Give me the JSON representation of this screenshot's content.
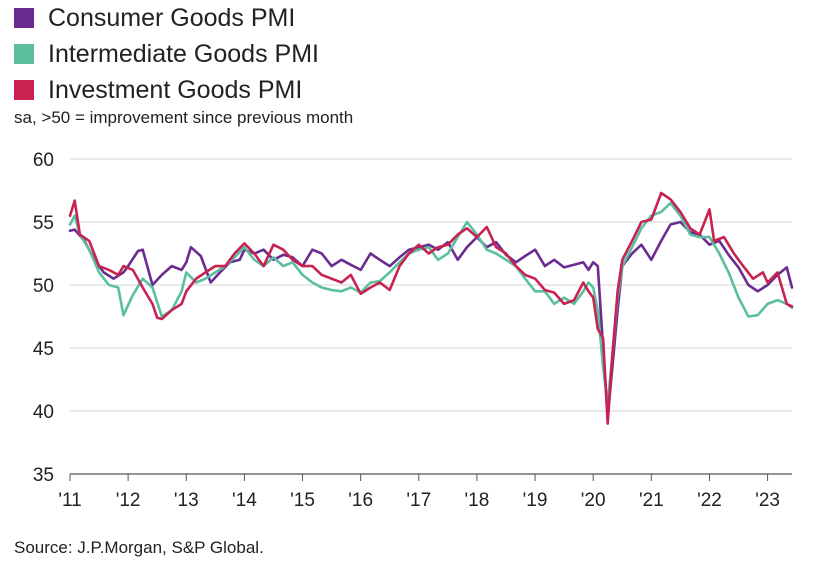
{
  "legend": [
    {
      "name": "Consumer Goods PMI",
      "color": "#6b2c91"
    },
    {
      "name": "Intermediate Goods PMI",
      "color": "#5bbf9f"
    },
    {
      "name": "Investment Goods PMI",
      "color": "#c8234f"
    }
  ],
  "subtitle": "sa, >50 = improvement since previous month",
  "source": "Source: J.P.Morgan, S&P Global.",
  "chart_data": {
    "type": "line",
    "title": "",
    "xlabel": "",
    "ylabel": "",
    "ylim": [
      35,
      60
    ],
    "y_ticks": [
      35,
      40,
      45,
      50,
      55,
      60
    ],
    "x_ticks": [
      "'11",
      "'12",
      "'13",
      "'14",
      "'15",
      "'16",
      "'17",
      "'18",
      "'19",
      "'20",
      "'21",
      "'22",
      "'23"
    ],
    "x_start": "2011-01",
    "x_end": "2023-06",
    "grid": "horizontal",
    "legend_position": "top-left",
    "series": [
      {
        "name": "Consumer Goods PMI",
        "color": "#6b2c91",
        "points": [
          [
            2011.0,
            54.3
          ],
          [
            2011.08,
            54.4
          ],
          [
            2011.25,
            53.5
          ],
          [
            2011.42,
            52.0
          ],
          [
            2011.58,
            51.0
          ],
          [
            2011.75,
            50.5
          ],
          [
            2011.92,
            51.0
          ],
          [
            2012.0,
            51.5
          ],
          [
            2012.17,
            52.7
          ],
          [
            2012.25,
            52.8
          ],
          [
            2012.42,
            50.0
          ],
          [
            2012.58,
            50.8
          ],
          [
            2012.75,
            51.5
          ],
          [
            2012.92,
            51.2
          ],
          [
            2013.0,
            51.8
          ],
          [
            2013.08,
            53.0
          ],
          [
            2013.25,
            52.3
          ],
          [
            2013.42,
            50.2
          ],
          [
            2013.58,
            51.0
          ],
          [
            2013.75,
            51.8
          ],
          [
            2013.92,
            52.0
          ],
          [
            2014.0,
            52.8
          ],
          [
            2014.17,
            52.5
          ],
          [
            2014.33,
            52.8
          ],
          [
            2014.5,
            52.0
          ],
          [
            2014.67,
            52.4
          ],
          [
            2014.83,
            52.2
          ],
          [
            2015.0,
            51.5
          ],
          [
            2015.17,
            52.8
          ],
          [
            2015.33,
            52.5
          ],
          [
            2015.5,
            51.5
          ],
          [
            2015.67,
            52.0
          ],
          [
            2015.83,
            51.6
          ],
          [
            2016.0,
            51.2
          ],
          [
            2016.17,
            52.5
          ],
          [
            2016.33,
            52.0
          ],
          [
            2016.5,
            51.5
          ],
          [
            2016.67,
            52.2
          ],
          [
            2016.83,
            52.8
          ],
          [
            2017.0,
            53.0
          ],
          [
            2017.17,
            53.2
          ],
          [
            2017.33,
            52.8
          ],
          [
            2017.5,
            53.4
          ],
          [
            2017.67,
            52.0
          ],
          [
            2017.83,
            53.0
          ],
          [
            2018.0,
            53.8
          ],
          [
            2018.17,
            53.0
          ],
          [
            2018.33,
            53.4
          ],
          [
            2018.5,
            52.4
          ],
          [
            2018.67,
            51.8
          ],
          [
            2018.83,
            52.3
          ],
          [
            2019.0,
            52.8
          ],
          [
            2019.17,
            51.5
          ],
          [
            2019.33,
            52.0
          ],
          [
            2019.5,
            51.4
          ],
          [
            2019.67,
            51.6
          ],
          [
            2019.83,
            51.8
          ],
          [
            2019.92,
            51.2
          ],
          [
            2020.0,
            51.8
          ],
          [
            2020.08,
            51.5
          ],
          [
            2020.17,
            45.0
          ],
          [
            2020.25,
            39.5
          ],
          [
            2020.33,
            43.5
          ],
          [
            2020.42,
            48.0
          ],
          [
            2020.5,
            51.5
          ],
          [
            2020.67,
            52.5
          ],
          [
            2020.83,
            53.2
          ],
          [
            2021.0,
            52.0
          ],
          [
            2021.17,
            53.5
          ],
          [
            2021.33,
            54.8
          ],
          [
            2021.5,
            55.0
          ],
          [
            2021.67,
            54.2
          ],
          [
            2021.83,
            54.0
          ],
          [
            2022.0,
            53.2
          ],
          [
            2022.17,
            53.5
          ],
          [
            2022.33,
            52.4
          ],
          [
            2022.5,
            51.4
          ],
          [
            2022.67,
            50.0
          ],
          [
            2022.83,
            49.5
          ],
          [
            2023.0,
            50.0
          ],
          [
            2023.17,
            50.8
          ],
          [
            2023.33,
            51.4
          ],
          [
            2023.42,
            49.8
          ]
        ]
      },
      {
        "name": "Intermediate Goods PMI",
        "color": "#5bbf9f",
        "points": [
          [
            2011.0,
            54.8
          ],
          [
            2011.08,
            55.5
          ],
          [
            2011.17,
            54.0
          ],
          [
            2011.33,
            52.8
          ],
          [
            2011.5,
            51.0
          ],
          [
            2011.67,
            50.0
          ],
          [
            2011.83,
            49.8
          ],
          [
            2011.92,
            47.6
          ],
          [
            2012.08,
            49.2
          ],
          [
            2012.25,
            50.5
          ],
          [
            2012.42,
            49.8
          ],
          [
            2012.58,
            47.5
          ],
          [
            2012.75,
            48.0
          ],
          [
            2012.92,
            49.5
          ],
          [
            2013.0,
            51.0
          ],
          [
            2013.17,
            50.2
          ],
          [
            2013.33,
            50.5
          ],
          [
            2013.5,
            51.0
          ],
          [
            2013.67,
            51.5
          ],
          [
            2013.83,
            52.2
          ],
          [
            2014.0,
            53.0
          ],
          [
            2014.17,
            52.0
          ],
          [
            2014.33,
            51.5
          ],
          [
            2014.5,
            52.2
          ],
          [
            2014.67,
            51.5
          ],
          [
            2014.83,
            51.8
          ],
          [
            2015.0,
            50.8
          ],
          [
            2015.17,
            50.2
          ],
          [
            2015.33,
            49.8
          ],
          [
            2015.5,
            49.6
          ],
          [
            2015.67,
            49.5
          ],
          [
            2015.83,
            49.8
          ],
          [
            2016.0,
            49.4
          ],
          [
            2016.17,
            50.2
          ],
          [
            2016.33,
            50.3
          ],
          [
            2016.5,
            51.0
          ],
          [
            2016.67,
            51.8
          ],
          [
            2016.83,
            52.5
          ],
          [
            2017.0,
            52.8
          ],
          [
            2017.17,
            53.0
          ],
          [
            2017.33,
            52.0
          ],
          [
            2017.5,
            52.5
          ],
          [
            2017.67,
            53.8
          ],
          [
            2017.83,
            55.0
          ],
          [
            2018.0,
            54.0
          ],
          [
            2018.17,
            52.8
          ],
          [
            2018.33,
            52.5
          ],
          [
            2018.5,
            52.0
          ],
          [
            2018.67,
            51.5
          ],
          [
            2018.83,
            50.5
          ],
          [
            2019.0,
            49.5
          ],
          [
            2019.17,
            49.5
          ],
          [
            2019.33,
            48.5
          ],
          [
            2019.5,
            49.0
          ],
          [
            2019.67,
            48.5
          ],
          [
            2019.83,
            49.5
          ],
          [
            2019.92,
            50.2
          ],
          [
            2020.0,
            49.8
          ],
          [
            2020.08,
            48.0
          ],
          [
            2020.17,
            43.5
          ],
          [
            2020.25,
            40.5
          ],
          [
            2020.33,
            44.5
          ],
          [
            2020.42,
            49.0
          ],
          [
            2020.5,
            51.5
          ],
          [
            2020.67,
            53.0
          ],
          [
            2020.83,
            54.5
          ],
          [
            2021.0,
            55.5
          ],
          [
            2021.17,
            55.8
          ],
          [
            2021.33,
            56.5
          ],
          [
            2021.5,
            55.5
          ],
          [
            2021.67,
            54.0
          ],
          [
            2021.83,
            53.8
          ],
          [
            2022.0,
            53.8
          ],
          [
            2022.17,
            52.5
          ],
          [
            2022.33,
            51.0
          ],
          [
            2022.5,
            49.0
          ],
          [
            2022.67,
            47.5
          ],
          [
            2022.83,
            47.6
          ],
          [
            2023.0,
            48.5
          ],
          [
            2023.17,
            48.8
          ],
          [
            2023.33,
            48.5
          ],
          [
            2023.42,
            48.2
          ]
        ]
      },
      {
        "name": "Investment Goods PMI",
        "color": "#c8234f",
        "points": [
          [
            2011.0,
            55.5
          ],
          [
            2011.08,
            56.7
          ],
          [
            2011.17,
            54.0
          ],
          [
            2011.33,
            53.5
          ],
          [
            2011.5,
            51.5
          ],
          [
            2011.67,
            51.2
          ],
          [
            2011.83,
            50.8
          ],
          [
            2011.92,
            51.5
          ],
          [
            2012.08,
            51.2
          ],
          [
            2012.25,
            49.8
          ],
          [
            2012.42,
            48.5
          ],
          [
            2012.5,
            47.4
          ],
          [
            2012.58,
            47.3
          ],
          [
            2012.75,
            48.0
          ],
          [
            2012.92,
            48.5
          ],
          [
            2013.0,
            49.5
          ],
          [
            2013.17,
            50.5
          ],
          [
            2013.33,
            51.0
          ],
          [
            2013.5,
            51.5
          ],
          [
            2013.67,
            51.5
          ],
          [
            2013.83,
            52.5
          ],
          [
            2014.0,
            53.3
          ],
          [
            2014.17,
            52.5
          ],
          [
            2014.33,
            51.5
          ],
          [
            2014.5,
            53.2
          ],
          [
            2014.67,
            52.8
          ],
          [
            2014.83,
            52.0
          ],
          [
            2015.0,
            51.5
          ],
          [
            2015.17,
            51.5
          ],
          [
            2015.33,
            50.8
          ],
          [
            2015.5,
            50.5
          ],
          [
            2015.67,
            50.2
          ],
          [
            2015.83,
            50.8
          ],
          [
            2016.0,
            49.3
          ],
          [
            2016.17,
            49.8
          ],
          [
            2016.33,
            50.2
          ],
          [
            2016.5,
            49.6
          ],
          [
            2016.67,
            51.5
          ],
          [
            2016.83,
            52.5
          ],
          [
            2017.0,
            53.2
          ],
          [
            2017.17,
            52.5
          ],
          [
            2017.33,
            53.0
          ],
          [
            2017.5,
            53.2
          ],
          [
            2017.67,
            54.0
          ],
          [
            2017.83,
            54.5
          ],
          [
            2018.0,
            53.8
          ],
          [
            2018.17,
            54.6
          ],
          [
            2018.33,
            53.0
          ],
          [
            2018.5,
            52.5
          ],
          [
            2018.67,
            51.5
          ],
          [
            2018.83,
            50.8
          ],
          [
            2019.0,
            50.5
          ],
          [
            2019.17,
            49.6
          ],
          [
            2019.33,
            49.4
          ],
          [
            2019.5,
            48.5
          ],
          [
            2019.67,
            48.8
          ],
          [
            2019.83,
            50.2
          ],
          [
            2019.92,
            49.5
          ],
          [
            2020.0,
            49.0
          ],
          [
            2020.08,
            46.5
          ],
          [
            2020.17,
            45.8
          ],
          [
            2020.25,
            39.0
          ],
          [
            2020.33,
            44.5
          ],
          [
            2020.42,
            49.5
          ],
          [
            2020.5,
            52.0
          ],
          [
            2020.67,
            53.5
          ],
          [
            2020.83,
            55.0
          ],
          [
            2021.0,
            55.2
          ],
          [
            2021.17,
            57.3
          ],
          [
            2021.33,
            56.8
          ],
          [
            2021.5,
            55.8
          ],
          [
            2021.67,
            54.5
          ],
          [
            2021.83,
            54.0
          ],
          [
            2022.0,
            56.0
          ],
          [
            2022.08,
            53.5
          ],
          [
            2022.25,
            53.8
          ],
          [
            2022.42,
            52.5
          ],
          [
            2022.58,
            51.5
          ],
          [
            2022.75,
            50.5
          ],
          [
            2022.92,
            51.0
          ],
          [
            2023.0,
            50.2
          ],
          [
            2023.17,
            51.0
          ],
          [
            2023.33,
            48.5
          ],
          [
            2023.42,
            48.3
          ]
        ]
      }
    ]
  }
}
